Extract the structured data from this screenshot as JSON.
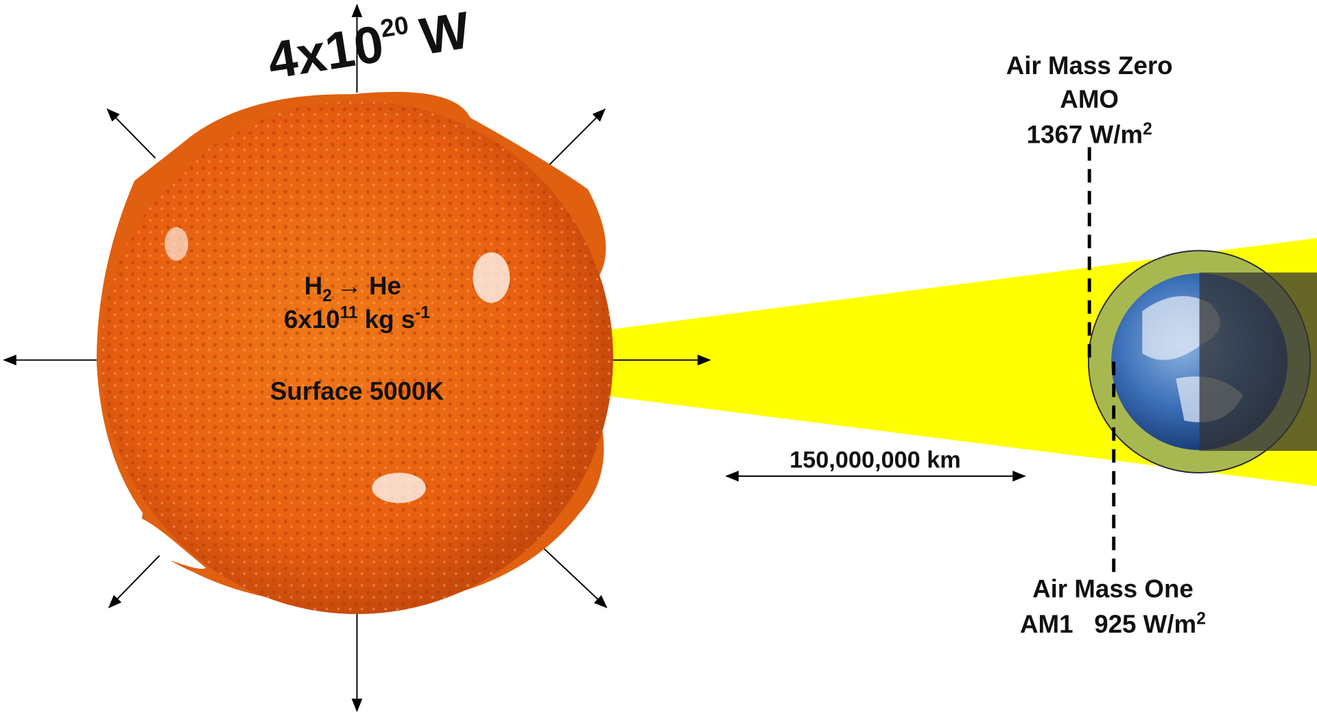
{
  "sun": {
    "power": {
      "base": "4x10",
      "exponent": "20",
      "unit": "W"
    },
    "reaction": {
      "left": "H",
      "subscript": "2",
      "right": "→ He"
    },
    "rate": {
      "base": "6x10",
      "exponent": "11",
      "unit": " kg s",
      "unit_exponent": "-1"
    },
    "surface": "Surface 5000K"
  },
  "distance": "150,000,000 km",
  "air_mass_zero": {
    "name": "Air Mass Zero",
    "code": "AMO",
    "irradiance": "1367 W/m",
    "irradiance_exponent": "2"
  },
  "air_mass_one": {
    "name": "Air Mass One",
    "irradiance": "AM1   925 W/m",
    "irradiance_exponent": "2"
  }
}
